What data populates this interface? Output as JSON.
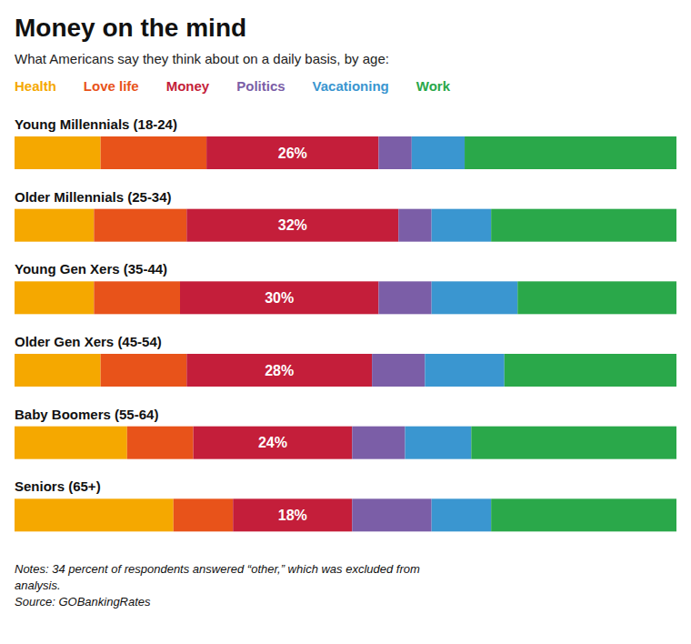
{
  "chart_data": {
    "type": "bar",
    "orientation": "horizontal",
    "stacked": true,
    "title": "Money on the mind",
    "subtitle": "What Americans say they think about on a daily basis, by age:",
    "categories": [
      "Young Millennials (18-24)",
      "Older Millennials (25-34)",
      "Young Gen Xers (35-44)",
      "Older Gen Xers (45-54)",
      "Baby Boomers (55-64)",
      "Seniors (65+)"
    ],
    "series": [
      {
        "name": "Health",
        "color": "#F5A800",
        "values": [
          13,
          12,
          12,
          13,
          17,
          24
        ]
      },
      {
        "name": "Love life",
        "color": "#E8531A",
        "values": [
          16,
          14,
          13,
          13,
          10,
          9
        ]
      },
      {
        "name": "Money",
        "color": "#C41E3A",
        "values": [
          26,
          32,
          30,
          28,
          24,
          18
        ],
        "data_labels": true,
        "value_labels": [
          "26%",
          "32%",
          "30%",
          "28%",
          "24%",
          "18%"
        ]
      },
      {
        "name": "Politics",
        "color": "#7B5EA7",
        "values": [
          5,
          5,
          8,
          8,
          8,
          12
        ]
      },
      {
        "name": "Vacationing",
        "color": "#3A96D0",
        "values": [
          8,
          9,
          13,
          12,
          10,
          9
        ]
      },
      {
        "name": "Work",
        "color": "#2AA84A",
        "values": [
          32,
          28,
          24,
          26,
          31,
          28
        ]
      }
    ],
    "xlim": [
      0,
      100
    ],
    "tick_labels": false,
    "grid": false,
    "annotations": [
      "Notes: 34 percent of respondents answered “other,” which was excluded from\nanalysis.\nSource: GOBankingRates"
    ]
  }
}
